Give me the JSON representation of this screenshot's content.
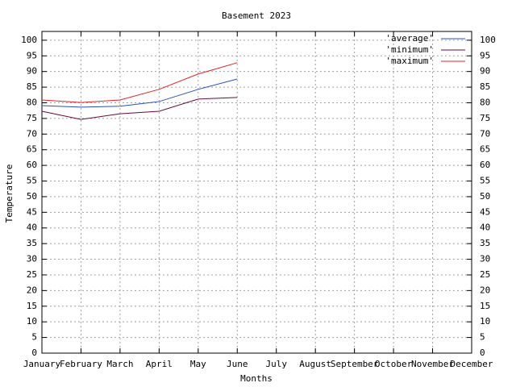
{
  "chart_data": {
    "type": "line",
    "title": "Basement 2023",
    "x_label": "Months",
    "y_label": "Temperature",
    "categories": [
      "January",
      "February",
      "March",
      "April",
      "May",
      "June",
      "July",
      "August",
      "September",
      "October",
      "November",
      "December"
    ],
    "series": [
      {
        "name": "'average'",
        "color": "#2a4cc8",
        "values": [
          79.1,
          78.6,
          78.9,
          80.4,
          84.3,
          87.6,
          null,
          null,
          null,
          null,
          null,
          null
        ]
      },
      {
        "name": "'minimum'",
        "color": "#6a0a3a",
        "values": [
          77.3,
          74.7,
          76.5,
          77.3,
          81.2,
          81.7,
          null,
          null,
          null,
          null,
          null,
          null
        ]
      },
      {
        "name": "'maximum'",
        "color": "#e02424",
        "values": [
          80.9,
          80.1,
          80.9,
          84.3,
          89.2,
          92.8,
          null,
          null,
          null,
          null,
          null,
          null
        ]
      }
    ],
    "ylim": [
      0,
      102.8
    ],
    "yticks": [
      0,
      5,
      10,
      15,
      20,
      25,
      30,
      35,
      40,
      45,
      50,
      55,
      60,
      65,
      70,
      75,
      80,
      85,
      90,
      95,
      100
    ],
    "y2lim": [
      0,
      102.8
    ],
    "y2ticks": [
      0,
      5,
      10,
      15,
      20,
      25,
      30,
      35,
      40,
      45,
      50,
      55,
      60,
      65,
      70,
      75,
      80,
      85,
      90,
      95,
      100
    ],
    "grid": true,
    "legend": "top-right"
  }
}
